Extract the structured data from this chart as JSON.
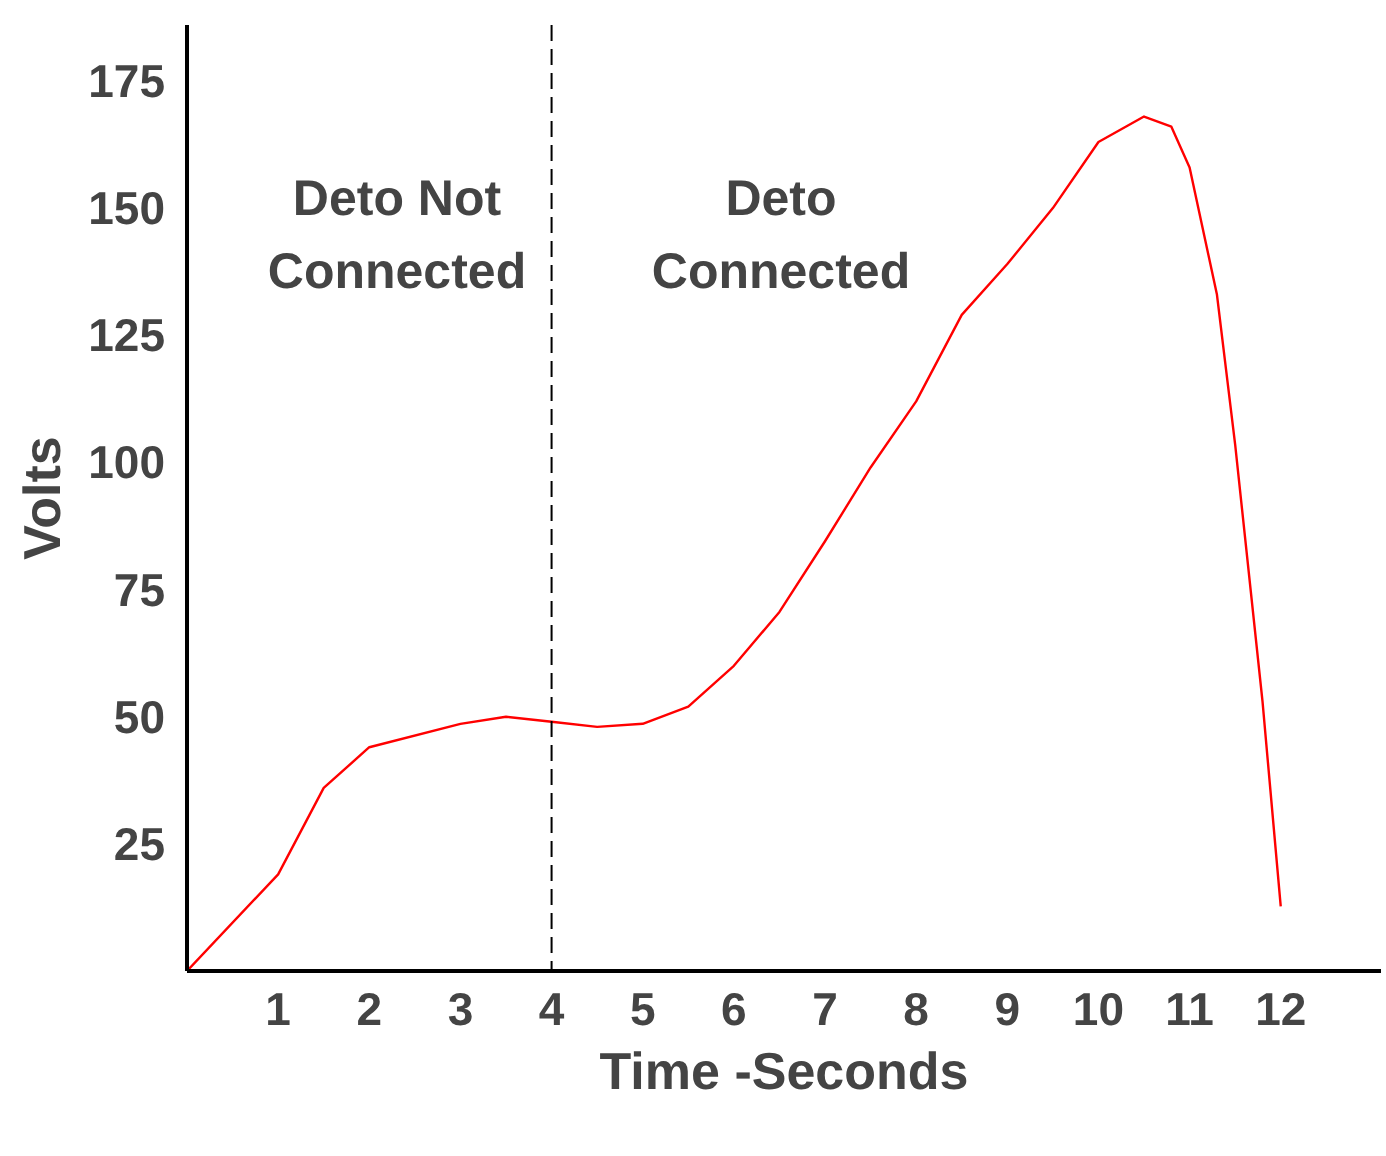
{
  "chart_data": {
    "type": "line",
    "xlabel": "Time -Seconds",
    "ylabel": "Volts",
    "x": [
      0,
      1,
      1.5,
      2,
      3,
      3.5,
      4,
      4.5,
      5,
      5.5,
      6,
      6.5,
      7,
      7.5,
      8,
      8.5,
      9,
      9.5,
      10,
      10.5,
      10.8,
      11,
      11.3,
      11.5,
      11.8,
      12
    ],
    "series": [
      {
        "color": "#ff0000",
        "values": [
          0,
          19,
          36,
          44,
          48.6,
          50,
          49,
          48,
          48.6,
          52,
          60,
          70.6,
          84.5,
          99,
          112,
          129,
          139,
          150,
          163,
          168,
          166,
          158,
          133,
          103.5,
          53,
          12.7
        ]
      }
    ],
    "xlim": [
      0,
      13.1
    ],
    "xticks": [
      1,
      2,
      3,
      4,
      5,
      6,
      7,
      8,
      9,
      10,
      11,
      12
    ],
    "ylim": [
      0,
      186
    ],
    "yticks": [
      25,
      50,
      75,
      100,
      125,
      150,
      175
    ],
    "grid": false,
    "marker": "none",
    "line_style": "solid",
    "ref_lines": [
      {
        "axis": "x",
        "value": 4,
        "color": "#000000",
        "line_style": "dashed"
      }
    ],
    "annotations": [
      "Deto Not\nConnected",
      "Deto\nConnected"
    ]
  }
}
